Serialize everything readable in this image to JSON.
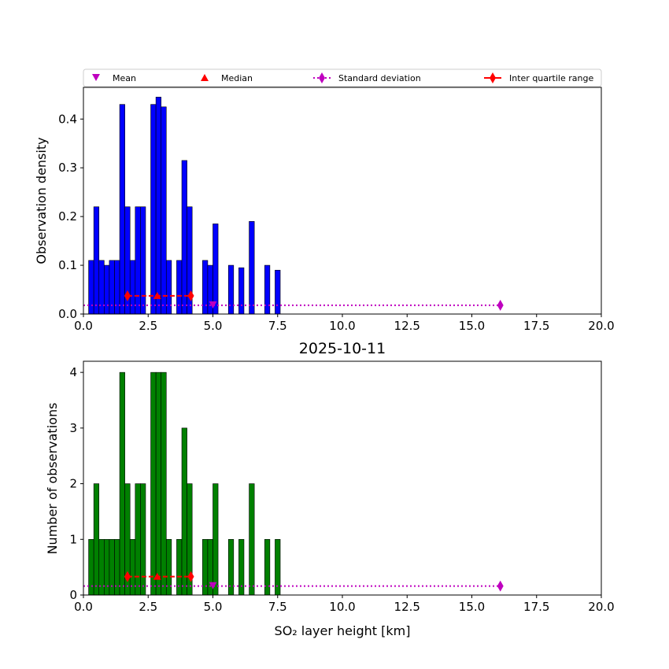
{
  "legend": {
    "mean": "Mean",
    "median": "Median",
    "std": "Standard deviation",
    "iqr": "Inter quartile range"
  },
  "colors": {
    "density_bars": "#0000ff",
    "count_bars": "#008000",
    "mean": "#bf00bf",
    "median": "#ff0000",
    "std": "#bf00bf",
    "iqr": "#ff0000"
  },
  "chart_data": [
    {
      "type": "bar",
      "title": "",
      "xlabel": "",
      "ylabel": "Observation density",
      "xlim": [
        0,
        20
      ],
      "ylim": [
        0,
        0.465
      ],
      "xticks": [
        "0.0",
        "2.5",
        "5.0",
        "7.5",
        "10.0",
        "12.5",
        "15.0",
        "17.5",
        "20.0"
      ],
      "yticks": [
        "0.0",
        "0.1",
        "0.2",
        "0.3",
        "0.4"
      ],
      "bin_width": 0.2,
      "bin_starts": [
        0.2,
        0.4,
        0.6,
        0.8,
        1.0,
        1.2,
        1.4,
        1.6,
        1.8,
        2.0,
        2.2,
        2.6,
        2.8,
        3.0,
        3.2,
        3.6,
        3.8,
        4.0,
        4.6,
        4.8,
        5.0,
        5.6,
        6.0,
        6.4,
        7.0,
        7.4
      ],
      "values": [
        0.11,
        0.22,
        0.11,
        0.1,
        0.11,
        0.11,
        0.43,
        0.22,
        0.11,
        0.22,
        0.22,
        0.43,
        0.445,
        0.425,
        0.11,
        0.11,
        0.315,
        0.22,
        0.11,
        0.1,
        0.185,
        0.1,
        0.095,
        0.19,
        0.1,
        0.09
      ],
      "statistics": {
        "marker_y": 0.018,
        "mean": 5.0,
        "median": 2.85,
        "std_range": [
          0.0,
          16.1
        ],
        "iqr_range": [
          1.7,
          4.15
        ]
      }
    },
    {
      "type": "bar",
      "title": "2025-10-11",
      "xlabel": "SO₂ layer height [km]",
      "ylabel": "Number of observations",
      "xlim": [
        0,
        20
      ],
      "ylim": [
        0,
        4.2
      ],
      "xticks": [
        "0.0",
        "2.5",
        "5.0",
        "7.5",
        "10.0",
        "12.5",
        "15.0",
        "17.5",
        "20.0"
      ],
      "yticks": [
        "0",
        "1",
        "2",
        "3",
        "4"
      ],
      "bin_width": 0.2,
      "bin_starts": [
        0.2,
        0.4,
        0.6,
        0.8,
        1.0,
        1.2,
        1.4,
        1.6,
        1.8,
        2.0,
        2.2,
        2.6,
        2.8,
        3.0,
        3.2,
        3.6,
        3.8,
        4.0,
        4.6,
        4.8,
        5.0,
        5.6,
        6.0,
        6.4,
        7.0,
        7.4
      ],
      "values": [
        1,
        2,
        1,
        1,
        1,
        1,
        4,
        2,
        1,
        2,
        2,
        4,
        4,
        4,
        1,
        1,
        3,
        2,
        1,
        1,
        2,
        1,
        1,
        2,
        1,
        1
      ],
      "statistics": {
        "marker_y": 0.16,
        "mean": 5.0,
        "median": 2.85,
        "std_range": [
          0.0,
          16.1
        ],
        "iqr_range": [
          1.7,
          4.15
        ]
      }
    }
  ]
}
